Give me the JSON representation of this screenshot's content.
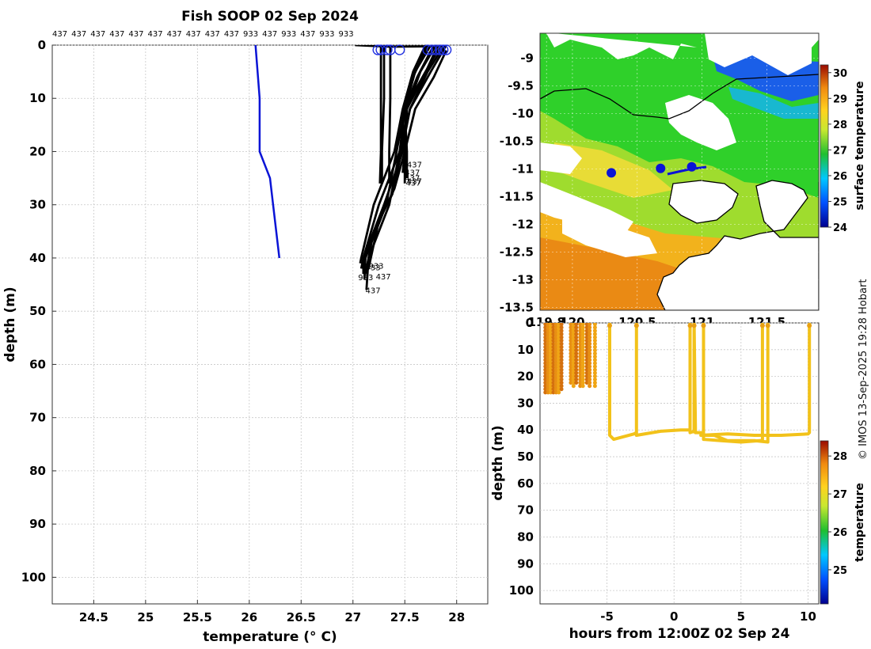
{
  "page": {
    "title": "Fish SOOP 02 Sep 2024",
    "credit": "© IMOS 13-Sep-2025 19:28 Hobart",
    "profile_ids": [
      "437",
      "437",
      "437",
      "437",
      "437",
      "437",
      "437",
      "437",
      "437",
      "437",
      "933",
      "437",
      "933",
      "437",
      "933",
      "933"
    ]
  },
  "chart_data": [
    {
      "id": "profiles",
      "type": "line",
      "title": "Fish SOOP 02 Sep 2024",
      "xlabel": "temperature (° C)",
      "ylabel": "depth (m)",
      "xlim": [
        24.1,
        28.3
      ],
      "ylim": [
        105,
        0
      ],
      "xticks": [
        24.5,
        25,
        25.5,
        26,
        26.5,
        27,
        27.5,
        28
      ],
      "yticks": [
        0,
        10,
        20,
        30,
        40,
        50,
        60,
        70,
        80,
        90,
        100
      ],
      "grid": true,
      "series": [
        {
          "name": "blue reference profile",
          "color": "#0a14d6",
          "points": [
            [
              26.06,
              0
            ],
            [
              26.08,
              5
            ],
            [
              26.1,
              10
            ],
            [
              26.1,
              20
            ],
            [
              26.2,
              25
            ],
            [
              26.23,
              30
            ],
            [
              26.29,
              40
            ]
          ]
        },
        {
          "name": "437",
          "color": "#000000",
          "points": [
            [
              27.9,
              0
            ],
            [
              27.75,
              5
            ],
            [
              27.55,
              12
            ],
            [
              27.45,
              20
            ],
            [
              27.35,
              30
            ],
            [
              27.15,
              40
            ],
            [
              27.13,
              46
            ]
          ]
        },
        {
          "name": "437",
          "color": "#000000",
          "points": [
            [
              27.85,
              0
            ],
            [
              27.7,
              5
            ],
            [
              27.5,
              12
            ],
            [
              27.42,
              20
            ],
            [
              27.32,
              30
            ],
            [
              27.12,
              40
            ],
            [
              27.11,
              44
            ]
          ]
        },
        {
          "name": "437",
          "color": "#000000",
          "points": [
            [
              27.8,
              0
            ],
            [
              27.65,
              5
            ],
            [
              27.52,
              12
            ],
            [
              27.48,
              20
            ],
            [
              27.3,
              30
            ],
            [
              27.1,
              40
            ],
            [
              27.1,
              43
            ]
          ]
        },
        {
          "name": "437",
          "color": "#000000",
          "points": [
            [
              27.75,
              0
            ],
            [
              27.6,
              5
            ],
            [
              27.5,
              12
            ],
            [
              27.45,
              20
            ],
            [
              27.25,
              30
            ],
            [
              27.1,
              40
            ],
            [
              27.08,
              42
            ]
          ]
        },
        {
          "name": "437",
          "color": "#000000",
          "points": [
            [
              27.7,
              0
            ],
            [
              27.58,
              5
            ],
            [
              27.48,
              12
            ],
            [
              27.4,
              20
            ],
            [
              27.2,
              30
            ],
            [
              27.08,
              40
            ],
            [
              27.07,
              41
            ]
          ]
        },
        {
          "name": "437",
          "color": "#000000",
          "points": [
            [
              27.88,
              0
            ],
            [
              27.72,
              5
            ],
            [
              27.55,
              12
            ],
            [
              27.47,
              20
            ],
            [
              27.38,
              28
            ],
            [
              27.2,
              35
            ],
            [
              27.12,
              43
            ]
          ]
        },
        {
          "name": "437",
          "color": "#000000",
          "points": [
            [
              27.9,
              1
            ],
            [
              27.78,
              6
            ],
            [
              27.6,
              12
            ],
            [
              27.5,
              20
            ],
            [
              27.4,
              27
            ],
            [
              27.25,
              33
            ],
            [
              27.15,
              42
            ]
          ]
        },
        {
          "name": "437",
          "color": "#000000",
          "points": [
            [
              27.82,
              0
            ],
            [
              27.68,
              6
            ],
            [
              27.52,
              12
            ],
            [
              27.5,
              20
            ],
            [
              27.48,
              24
            ]
          ]
        },
        {
          "name": "437",
          "color": "#000000",
          "points": [
            [
              27.78,
              0
            ],
            [
              27.62,
              6
            ],
            [
              27.5,
              12
            ],
            [
              27.52,
              20
            ],
            [
              27.52,
              25
            ]
          ]
        },
        {
          "name": "437",
          "color": "#000000",
          "points": [
            [
              27.72,
              0
            ],
            [
              27.58,
              6
            ],
            [
              27.48,
              14
            ],
            [
              27.5,
              20
            ],
            [
              27.5,
              26
            ]
          ]
        },
        {
          "name": "933",
          "color": "#000000",
          "points": [
            [
              27.27,
              0
            ],
            [
              27.27,
              10
            ],
            [
              27.27,
              20
            ],
            [
              27.26,
              26
            ]
          ]
        },
        {
          "name": "933",
          "color": "#000000",
          "points": [
            [
              27.3,
              0
            ],
            [
              27.3,
              10
            ],
            [
              27.28,
              20
            ],
            [
              27.28,
              26
            ]
          ]
        },
        {
          "name": "933",
          "color": "#000000",
          "points": [
            [
              27.36,
              0
            ],
            [
              27.36,
              10
            ],
            [
              27.35,
              20
            ],
            [
              27.35,
              26
            ]
          ]
        },
        {
          "name": "surface trace",
          "color": "#000000",
          "points": [
            [
              27.02,
              0
            ],
            [
              27.35,
              0.3
            ],
            [
              27.9,
              0.2
            ]
          ]
        }
      ],
      "surface_markers": [
        27.24,
        27.27,
        27.33,
        27.36,
        27.45,
        27.72,
        27.76,
        27.8,
        27.84,
        27.87,
        27.9
      ],
      "bottom_labels": [
        {
          "x": 27.52,
          "y": 23,
          "text": "437"
        },
        {
          "x": 27.5,
          "y": 24.5,
          "text": "437"
        },
        {
          "x": 27.5,
          "y": 25.5,
          "text": "437"
        },
        {
          "x": 27.52,
          "y": 26.1,
          "text": "437"
        },
        {
          "x": 27.51,
          "y": 26.4,
          "text": "437"
        },
        {
          "x": 27.15,
          "y": 42,
          "text": "933"
        },
        {
          "x": 27.12,
          "y": 42.3,
          "text": "933"
        },
        {
          "x": 27.22,
          "y": 44,
          "text": "437"
        },
        {
          "x": 27.05,
          "y": 44.2,
          "text": "933"
        },
        {
          "x": 27.12,
          "y": 46.6,
          "text": "437"
        }
      ]
    },
    {
      "id": "sst_map",
      "type": "heatmap",
      "title": "",
      "xlabel": "",
      "ylabel": "",
      "xlim": [
        119.75,
        121.9
      ],
      "ylim": [
        -13.55,
        -8.55
      ],
      "xticks": [
        119.8,
        120,
        120.5,
        121,
        121.5
      ],
      "xtick_labels": [
        "119.8",
        "120",
        "120.5",
        "121",
        "121.5"
      ],
      "yticks": [
        -9,
        -9.5,
        -10,
        -10.5,
        -11,
        -11.5,
        -12,
        -12.5,
        -13,
        -13.5
      ],
      "colorbar": {
        "label": "surface temperature",
        "min": 24,
        "max": 30.3,
        "ticks": [
          24,
          25,
          26,
          27,
          28,
          29,
          30
        ]
      },
      "track_points": [
        [
          120.3,
          -11.07
        ],
        [
          120.68,
          -10.99
        ],
        [
          120.92,
          -10.96
        ]
      ]
    },
    {
      "id": "time_depth",
      "type": "scatter",
      "title": "",
      "xlabel": "hours from 12:00Z 02 Sep 24",
      "ylabel": "depth (m)",
      "xlim": [
        -10,
        10.8
      ],
      "ylim": [
        105,
        0
      ],
      "xticks": [
        -5,
        0,
        5,
        10
      ],
      "yticks": [
        0,
        10,
        20,
        30,
        40,
        50,
        60,
        70,
        80,
        90,
        100
      ],
      "colorbar": {
        "label": "temperature",
        "min": 24.1,
        "max": 28.4,
        "ticks": [
          25,
          26,
          27,
          28
        ]
      },
      "shallow_casts": [
        {
          "t": -9.6,
          "depth": 26
        },
        {
          "t": -9.4,
          "depth": 26
        },
        {
          "t": -9.2,
          "depth": 26
        },
        {
          "t": -9.0,
          "depth": 26
        },
        {
          "t": -8.8,
          "depth": 26
        },
        {
          "t": -8.6,
          "depth": 26
        },
        {
          "t": -8.4,
          "depth": 25
        },
        {
          "t": -7.7,
          "depth": 23
        },
        {
          "t": -7.5,
          "depth": 24
        },
        {
          "t": -7.3,
          "depth": 23
        },
        {
          "t": -7.0,
          "depth": 24
        },
        {
          "t": -6.8,
          "depth": 24
        },
        {
          "t": -6.5,
          "depth": 23
        },
        {
          "t": -6.3,
          "depth": 24
        },
        {
          "t": -5.9,
          "depth": 24
        }
      ],
      "deep_path": [
        [
          -4.8,
          0
        ],
        [
          -4.8,
          42
        ],
        [
          -4.5,
          43.5
        ],
        [
          -3,
          41.5
        ],
        [
          -2.8,
          41
        ],
        [
          -2.8,
          0
        ],
        [
          -2.8,
          42
        ],
        [
          -1,
          40.5
        ],
        [
          0.5,
          40
        ],
        [
          1.2,
          40
        ],
        [
          1.2,
          0
        ],
        [
          1.2,
          41
        ],
        [
          1.5,
          40.5
        ],
        [
          1.5,
          0
        ],
        [
          1.6,
          41
        ],
        [
          2.2,
          41
        ],
        [
          2.2,
          0
        ],
        [
          2.2,
          43.5
        ],
        [
          3.5,
          44
        ],
        [
          5,
          44.5
        ],
        [
          6.4,
          44
        ],
        [
          6.6,
          44
        ],
        [
          6.6,
          0
        ],
        [
          6.6,
          42
        ],
        [
          7,
          42
        ],
        [
          7,
          0
        ],
        [
          7,
          44.5
        ],
        [
          6,
          44
        ],
        [
          4,
          44
        ],
        [
          3,
          42
        ],
        [
          2,
          42
        ],
        [
          4,
          41.5
        ],
        [
          6,
          42
        ],
        [
          8,
          42
        ],
        [
          10,
          41.5
        ],
        [
          10.1,
          41
        ],
        [
          10.1,
          0
        ]
      ]
    }
  ]
}
